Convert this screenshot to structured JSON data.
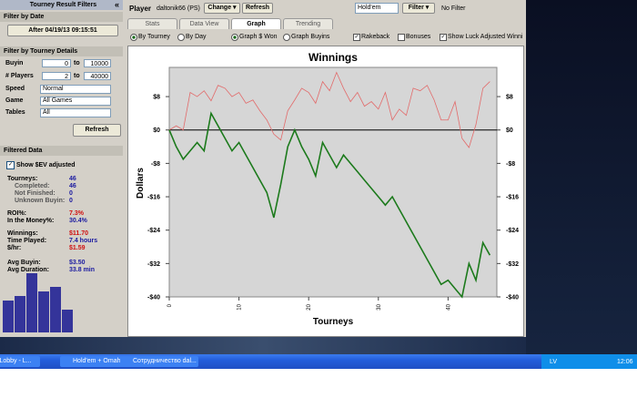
{
  "filters": {
    "title": "Tourney Result Filters",
    "collapse": "«",
    "date_heading": "Filter by Date",
    "date_button": "After 04/19/13 09:15:51",
    "details_heading": "Filter by Tourney Details",
    "buyin_label": "Buyin",
    "buyin_from": "0",
    "to_1": "to",
    "buyin_to": "10000",
    "players_label": "# Players",
    "players_from": "2",
    "to_2": "to",
    "players_to": "40000",
    "speed_label": "Speed",
    "speed": "Normal",
    "game_label": "Game",
    "game": "All Games",
    "tables_label": "Tables",
    "tables": "All",
    "refresh": "Refresh"
  },
  "filtered": {
    "heading": "Filtered Data",
    "ev_checkbox": "Show $EV adjusted",
    "stats": [
      {
        "label": "Tourneys:",
        "value": "46",
        "color": "#1a1aa0",
        "indent": false
      },
      {
        "label": "Completed:",
        "value": "46",
        "color": "#1a1aa0",
        "indent": true
      },
      {
        "label": "Not Finished:",
        "value": "0",
        "color": "#1a1aa0",
        "indent": true
      },
      {
        "label": "Unknown Buyin:",
        "value": "0",
        "color": "#1a1aa0",
        "indent": true
      },
      {
        "label": "ROI%:",
        "value": "7.3%",
        "color": "#d01010",
        "indent": false
      },
      {
        "label": "In the Money%:",
        "value": "30.4%",
        "color": "#1a1aa0",
        "indent": false
      },
      {
        "label": "Winnings:",
        "value": "$11.70",
        "color": "#d01010",
        "indent": false
      },
      {
        "label": "Time Played:",
        "value": "7.4 hours",
        "color": "#1a1aa0",
        "indent": false
      },
      {
        "label": "$/hr:",
        "value": "$1.59",
        "color": "#d01010",
        "indent": false
      },
      {
        "label": "Avg Buyin:",
        "value": "$3.50",
        "color": "#1a1aa0",
        "indent": false
      },
      {
        "label": "Avg Duration:",
        "value": "33.8 min",
        "color": "#1a1aa0",
        "indent": false
      }
    ]
  },
  "histogram": {
    "values": [
      35,
      40,
      65,
      45,
      50,
      25
    ],
    "color": "#34349a"
  },
  "toolbar": {
    "player_label": "Player",
    "player": "daltonik66 (PS)",
    "change": "Change ▾",
    "refresh": "Refresh",
    "game": "Hold'em",
    "filter": "Filter ▾",
    "filter_status": "No Filter"
  },
  "tabs": [
    "Stats",
    "Data View",
    "Graph",
    "Trending"
  ],
  "options": [
    "By Tourney",
    "By Day",
    "Graph $ Won",
    "Graph Buyins",
    "Rakeback",
    "Bonuses",
    "Show Luck Adjusted Winni"
  ],
  "chart_data": {
    "type": "line",
    "title": "Winnings",
    "xlabel": "Tourneys",
    "ylabel": "Dollars",
    "xlim": [
      0,
      47
    ],
    "xticks": [
      0,
      10,
      20,
      30,
      40
    ],
    "ylim": [
      -40,
      15
    ],
    "yticks": [
      {
        "value": 8,
        "label": "$8"
      },
      {
        "value": 0,
        "label": "$0"
      },
      {
        "value": -8,
        "label": "-$8"
      },
      {
        "value": -16,
        "label": "-$16"
      },
      {
        "value": -24,
        "label": "-$24"
      },
      {
        "value": -32,
        "label": "-$32"
      },
      {
        "value": -40,
        "label": "-$40"
      }
    ],
    "series": [
      {
        "color": "#e26a6a",
        "values": [
          0,
          1,
          0,
          9,
          8,
          9.4,
          7,
          10.7,
          10,
          8,
          9,
          6.4,
          7.2,
          4.6,
          2.4,
          -1,
          -2.4,
          4.6,
          7.2,
          10,
          9,
          6.4,
          11.6,
          9.4,
          13.8,
          10,
          6.8,
          9,
          5.7,
          6.8,
          5,
          9,
          2.4,
          5,
          3.5,
          10,
          9.4,
          10.7,
          7.2,
          2.4,
          2.4,
          6.8,
          -2,
          -4.2,
          1.3,
          10,
          11.6
        ]
      },
      {
        "color": "#1c7a1c",
        "values": [
          0,
          -4,
          -7,
          -5,
          -3,
          -5,
          4,
          1,
          -2,
          -5,
          -3,
          -6,
          -9,
          -12,
          -15,
          -21,
          -13,
          -4,
          0,
          -4,
          -7,
          -11,
          -3,
          -6,
          -9,
          -6,
          -8,
          -10,
          -12,
          -14,
          -16,
          -18,
          -16,
          -19,
          -22,
          -25,
          -28,
          -31,
          -34,
          -37,
          -36,
          -38,
          -40,
          -32,
          -36,
          -27,
          -30
        ]
      }
    ]
  },
  "taskbar": {
    "items": [
      "s Lobby - L...",
      "Hold'em + Omaha Ma...",
      "Сотрудничество dal..."
    ],
    "lang": "LV",
    "clock": "12:06"
  }
}
